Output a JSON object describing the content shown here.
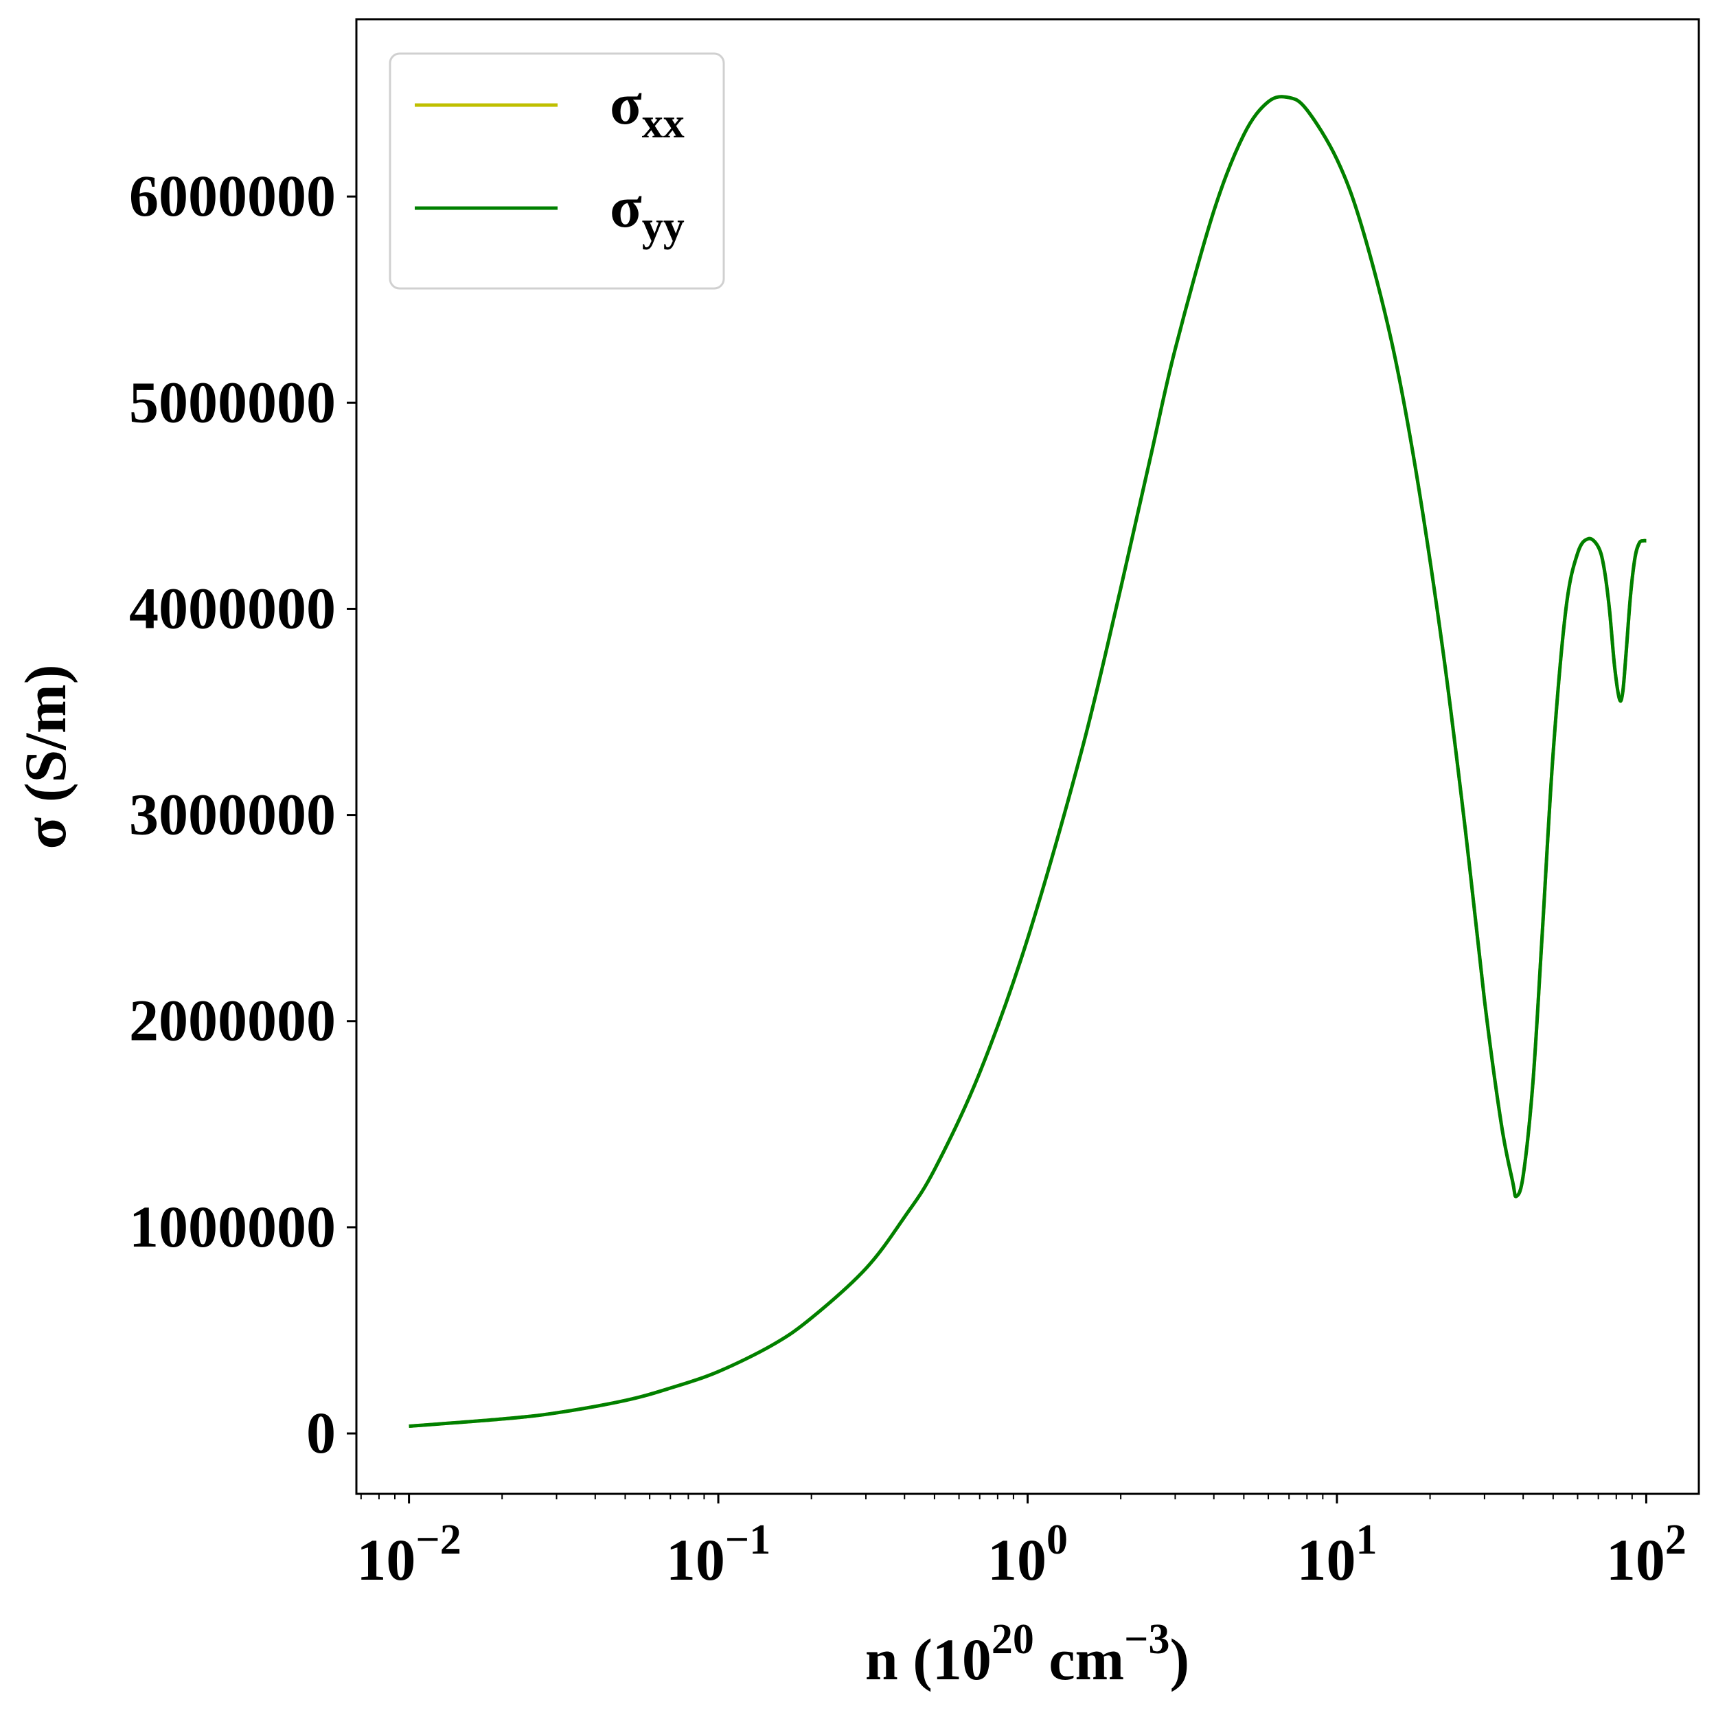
{
  "chart_data": {
    "type": "line",
    "xscale": "log",
    "xlim": [
      0.00676,
      147.9
    ],
    "ylim": [
      -293000,
      6860000
    ],
    "grid": false,
    "legend_position": "top-left",
    "xlabel": {
      "base": "n (10",
      "sup1": "20",
      "mid": " cm",
      "sup2": "−3",
      "end": ")"
    },
    "ylabel": "σ (S/m)",
    "x_ticks": [
      {
        "value": 0.01,
        "base": "10",
        "exp": "−2"
      },
      {
        "value": 0.1,
        "base": "10",
        "exp": "−1"
      },
      {
        "value": 1,
        "base": "10",
        "exp": "0"
      },
      {
        "value": 10,
        "base": "10",
        "exp": "1"
      },
      {
        "value": 100,
        "base": "10",
        "exp": "2"
      }
    ],
    "y_ticks": [
      {
        "value": 0,
        "label": "0"
      },
      {
        "value": 1000000,
        "label": "1000000"
      },
      {
        "value": 2000000,
        "label": "2000000"
      },
      {
        "value": 3000000,
        "label": "3000000"
      },
      {
        "value": 4000000,
        "label": "4000000"
      },
      {
        "value": 5000000,
        "label": "5000000"
      },
      {
        "value": 6000000,
        "label": "6000000"
      }
    ],
    "series": [
      {
        "name_main": "σ",
        "name_sub": "xx",
        "color": "#bfbf00",
        "x": [
          0.01,
          0.02,
          0.03,
          0.05,
          0.07,
          0.1,
          0.15,
          0.2,
          0.3,
          0.4,
          0.5,
          0.7,
          1.0,
          1.5,
          2.0,
          2.5,
          3.0,
          4.0,
          5.0,
          6.0,
          7.0,
          8.0,
          10.0,
          12.0,
          15.0,
          18.0,
          22.0,
          26.0,
          30.0,
          34.0,
          37.0,
          38.0,
          40.0,
          43.0,
          46.0,
          50.0,
          55.0,
          60.0,
          65.0,
          70.0,
          73.0,
          76.0,
          79.0,
          82.0,
          84.0,
          86.0,
          89.0,
          92.0,
          95.0,
          98.0,
          100.0
        ],
        "values": [
          35000,
          70000,
          100000,
          160000,
          220000,
          300000,
          430000,
          560000,
          800000,
          1050000,
          1280000,
          1750000,
          2400000,
          3320000,
          4100000,
          4740000,
          5260000,
          5930000,
          6300000,
          6460000,
          6480000,
          6420000,
          6180000,
          5860000,
          5300000,
          4670000,
          3800000,
          2930000,
          2100000,
          1500000,
          1220000,
          1150000,
          1250000,
          1700000,
          2400000,
          3300000,
          4000000,
          4270000,
          4340000,
          4300000,
          4200000,
          4000000,
          3720000,
          3560000,
          3600000,
          3780000,
          4070000,
          4250000,
          4320000,
          4330000,
          4330000
        ]
      },
      {
        "name_main": "σ",
        "name_sub": "yy",
        "color": "#008000",
        "x": [
          0.01,
          0.02,
          0.03,
          0.05,
          0.07,
          0.1,
          0.15,
          0.2,
          0.3,
          0.4,
          0.5,
          0.7,
          1.0,
          1.5,
          2.0,
          2.5,
          3.0,
          4.0,
          5.0,
          6.0,
          7.0,
          8.0,
          10.0,
          12.0,
          15.0,
          18.0,
          22.0,
          26.0,
          30.0,
          34.0,
          37.0,
          38.0,
          40.0,
          43.0,
          46.0,
          50.0,
          55.0,
          60.0,
          65.0,
          70.0,
          73.0,
          76.0,
          79.0,
          82.0,
          84.0,
          86.0,
          89.0,
          92.0,
          95.0,
          98.0,
          100.0
        ],
        "values": [
          35000,
          70000,
          100000,
          160000,
          220000,
          300000,
          430000,
          560000,
          800000,
          1050000,
          1280000,
          1750000,
          2400000,
          3320000,
          4100000,
          4740000,
          5260000,
          5930000,
          6300000,
          6460000,
          6480000,
          6420000,
          6180000,
          5860000,
          5300000,
          4670000,
          3800000,
          2930000,
          2100000,
          1500000,
          1220000,
          1150000,
          1250000,
          1700000,
          2400000,
          3300000,
          4000000,
          4270000,
          4340000,
          4300000,
          4200000,
          4000000,
          3720000,
          3560000,
          3600000,
          3780000,
          4070000,
          4250000,
          4320000,
          4330000,
          4330000
        ]
      }
    ]
  }
}
